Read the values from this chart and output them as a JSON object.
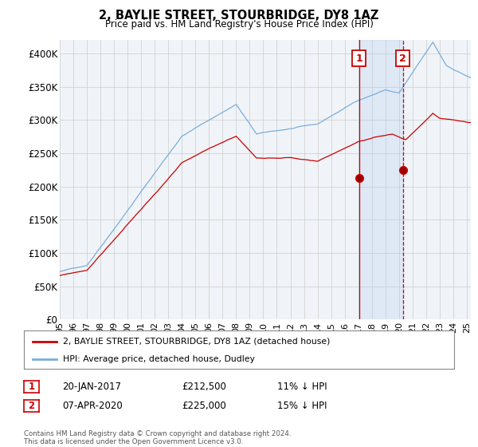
{
  "title": "2, BAYLIE STREET, STOURBRIDGE, DY8 1AZ",
  "subtitle": "Price paid vs. HM Land Registry's House Price Index (HPI)",
  "ylabel_ticks": [
    "£0",
    "£50K",
    "£100K",
    "£150K",
    "£200K",
    "£250K",
    "£300K",
    "£350K",
    "£400K"
  ],
  "ytick_values": [
    0,
    50000,
    100000,
    150000,
    200000,
    250000,
    300000,
    350000,
    400000
  ],
  "ylim": [
    0,
    420000
  ],
  "xlim_start": 1995.0,
  "xlim_end": 2025.3,
  "red_line_color": "#cc0000",
  "blue_line_color": "#7aaddb",
  "shade_color": "#ddeeff",
  "background_color": "#f0f4f8",
  "grid_color": "#cccccc",
  "legend_label_red": "2, BAYLIE STREET, STOURBRIDGE, DY8 1AZ (detached house)",
  "legend_label_blue": "HPI: Average price, detached house, Dudley",
  "transaction1_label": "1",
  "transaction1_date": "20-JAN-2017",
  "transaction1_price": "£212,500",
  "transaction1_hpi": "11% ↓ HPI",
  "transaction1_year": 2017.05,
  "transaction1_value": 212500,
  "transaction2_label": "2",
  "transaction2_date": "07-APR-2020",
  "transaction2_price": "£225,000",
  "transaction2_hpi": "15% ↓ HPI",
  "transaction2_year": 2020.28,
  "transaction2_value": 225000,
  "footer_text": "Contains HM Land Registry data © Crown copyright and database right 2024.\nThis data is licensed under the Open Government Licence v3.0.",
  "xtick_years": [
    1995,
    1996,
    1997,
    1998,
    1999,
    2000,
    2001,
    2002,
    2003,
    2004,
    2005,
    2006,
    2007,
    2008,
    2009,
    2010,
    2011,
    2012,
    2013,
    2014,
    2015,
    2016,
    2017,
    2018,
    2019,
    2020,
    2021,
    2022,
    2023,
    2024,
    2025
  ],
  "xtick_labels": [
    "95",
    "96",
    "97",
    "98",
    "99",
    "00",
    "01",
    "02",
    "03",
    "04",
    "05",
    "06",
    "07",
    "08",
    "09",
    "10",
    "11",
    "12",
    "13",
    "14",
    "15",
    "16",
    "17",
    "18",
    "19",
    "20",
    "21",
    "22",
    "23",
    "24",
    "25"
  ]
}
